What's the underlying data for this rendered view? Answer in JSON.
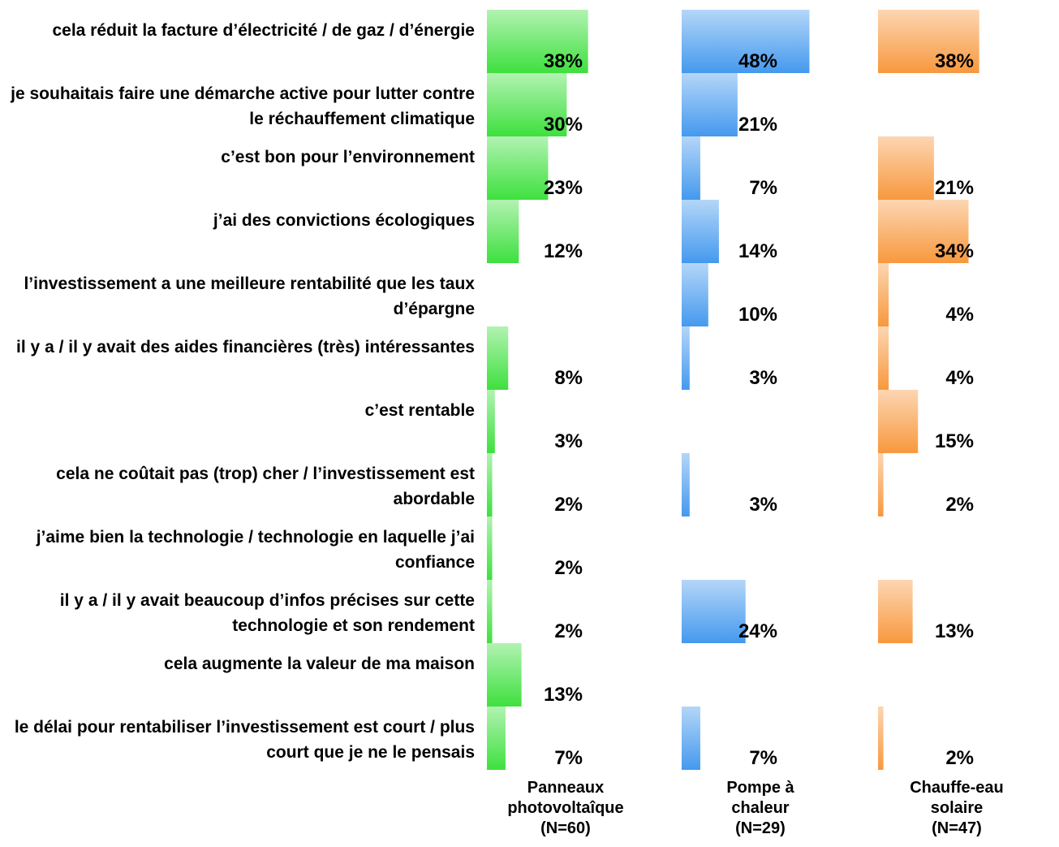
{
  "chart_data": {
    "type": "bar",
    "orientation": "horizontal",
    "categories": [
      "cela réduit la facture d’électricité / de gaz / d’énergie",
      "je souhaitais faire une démarche active pour lutter contre le réchauffement climatique",
      "c’est bon pour l’environnement",
      "j’ai des convictions écologiques",
      "l’investissement a une meilleure rentabilité que les taux d’épargne",
      "il y a / il y avait des aides financières (très) intéressantes",
      "c’est rentable",
      "cela ne coûtait pas (trop) cher / l’investissement est abordable",
      "j’aime bien la technologie / technologie en laquelle j’ai confiance",
      "il y a / il y avait beaucoup d’infos précises sur cette technologie et son rendement",
      "cela augmente la valeur de ma maison",
      "le délai pour rentabiliser l’investissement est court / plus court que je ne le pensais"
    ],
    "series": [
      {
        "name": "Panneaux\nphotovoltaîque\n(N=60)",
        "color": "#3ee03e",
        "values": [
          38,
          30,
          23,
          12,
          null,
          8,
          3,
          2,
          2,
          2,
          13,
          7
        ],
        "value_labels": [
          "38%",
          "30%",
          "23%",
          "12%",
          null,
          "8%",
          "3%",
          "2%",
          "2%",
          "2%",
          "13%",
          "7%"
        ]
      },
      {
        "name": "Pompe à\nchaleur\n(N=29)",
        "color": "#4499ee",
        "values": [
          48,
          21,
          7,
          14,
          10,
          3,
          null,
          3,
          null,
          24,
          null,
          7
        ],
        "value_labels": [
          "48%",
          "21%",
          "7%",
          "14%",
          "10%",
          "3%",
          null,
          "3%",
          null,
          "24%",
          null,
          "7%"
        ]
      },
      {
        "name": "Chauffe-eau\nsolaire\n(N=47)",
        "color": "#f8983e",
        "values": [
          38,
          null,
          21,
          34,
          4,
          4,
          15,
          2,
          null,
          13,
          null,
          2
        ],
        "value_labels": [
          "38%",
          null,
          "21%",
          "34%",
          "4%",
          "4%",
          "15%",
          "2%",
          null,
          "13%",
          null,
          "2%"
        ]
      }
    ]
  }
}
